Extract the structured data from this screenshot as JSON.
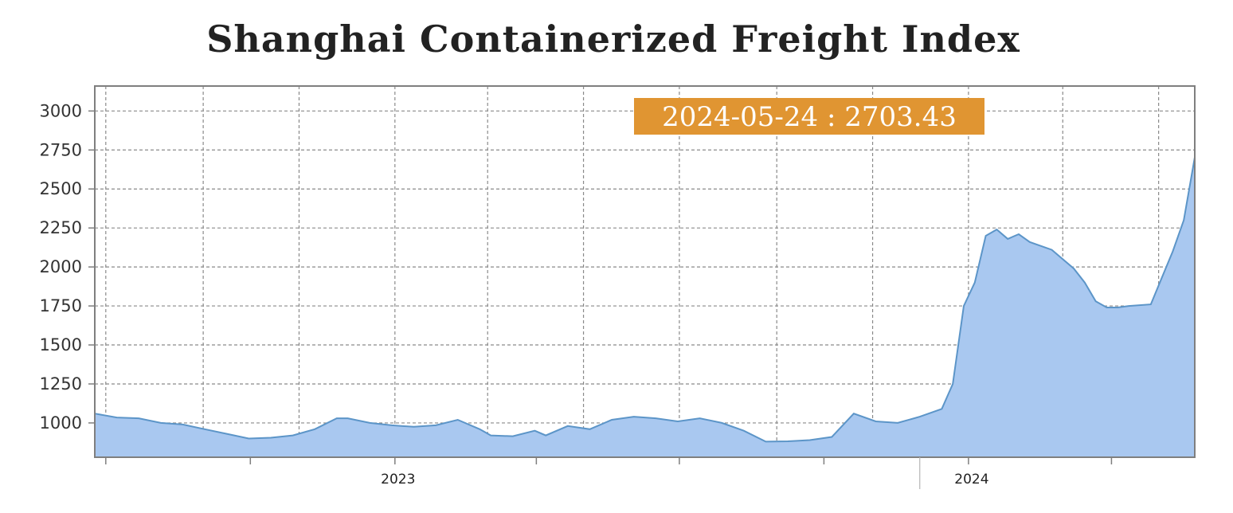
{
  "chart_data": {
    "type": "area",
    "title": "Shanghai Containerized Freight Index",
    "xlabel": "",
    "ylabel": "",
    "ylim": [
      780,
      3160
    ],
    "y_ticks": [
      1000,
      1250,
      1500,
      1750,
      2000,
      2250,
      2500,
      2750,
      3000
    ],
    "x_range": [
      "2022-06-24",
      "2024-05-24"
    ],
    "x_tick_labels": [
      {
        "date": "2023-01-01",
        "label": "2023"
      },
      {
        "date": "2024-01-01",
        "label": "2024"
      }
    ],
    "grid": true,
    "callout": "2024-05-24 : 2703.43",
    "series": [
      {
        "x": [
          "2022-06-24",
          "2022-07-08",
          "2022-07-22",
          "2022-08-05",
          "2022-08-19",
          "2022-09-02",
          "2022-09-16",
          "2022-09-30",
          "2022-10-14",
          "2022-10-28",
          "2022-11-11",
          "2022-11-25",
          "2022-12-02",
          "2022-12-16",
          "2022-12-30",
          "2023-01-13",
          "2023-01-27",
          "2023-02-10",
          "2023-02-24",
          "2023-03-03",
          "2023-03-17",
          "2023-03-31",
          "2023-04-07",
          "2023-04-21",
          "2023-05-05",
          "2023-05-19",
          "2023-06-02",
          "2023-06-16",
          "2023-06-30",
          "2023-07-14",
          "2023-07-28",
          "2023-08-11",
          "2023-08-25",
          "2023-09-08",
          "2023-09-22",
          "2023-10-06",
          "2023-10-20",
          "2023-11-03",
          "2023-11-17",
          "2023-12-01",
          "2023-12-15",
          "2023-12-22",
          "2023-12-29",
          "2024-01-05",
          "2024-01-12",
          "2024-01-19",
          "2024-01-26",
          "2024-02-02",
          "2024-02-09",
          "2024-02-23",
          "2024-03-08",
          "2024-03-15",
          "2024-03-22",
          "2024-03-29",
          "2024-04-05",
          "2024-04-12",
          "2024-04-26",
          "2024-05-03",
          "2024-05-10",
          "2024-05-17",
          "2024-05-24"
        ],
        "values": [
          1060,
          1035,
          1030,
          1000,
          990,
          960,
          930,
          900,
          905,
          920,
          960,
          1030,
          1030,
          1000,
          985,
          975,
          985,
          1020,
          960,
          920,
          915,
          950,
          920,
          980,
          960,
          1020,
          1040,
          1030,
          1010,
          1030,
          1000,
          950,
          880,
          882,
          890,
          910,
          1060,
          1010,
          1000,
          1040,
          1090,
          1250,
          1750,
          1900,
          2200,
          2240,
          2180,
          2210,
          2160,
          2110,
          1990,
          1900,
          1780,
          1740,
          1740,
          1750,
          1760,
          1930,
          2100,
          2300,
          2703.43
        ]
      }
    ],
    "colors": {
      "area_fill": "#a9c8f0",
      "area_line": "#5c95c8",
      "badge": "#e09532",
      "grid": "#8a8a8a",
      "frame": "#7f7f7f"
    }
  }
}
